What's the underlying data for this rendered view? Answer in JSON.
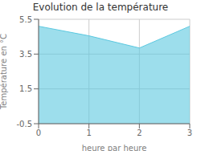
{
  "chart_data": {
    "type": "area",
    "title": "Evolution de la température",
    "xlabel": "heure par heure",
    "ylabel": "Température en °C",
    "x": [
      0,
      1,
      2,
      3
    ],
    "values": [
      5.1,
      4.55,
      3.85,
      5.1
    ],
    "xlim": [
      0,
      3
    ],
    "ylim": [
      -0.5,
      5.5
    ],
    "xticks": [
      0,
      1,
      2,
      3
    ],
    "yticks": [
      -0.5,
      1.5,
      3.5,
      5.5
    ],
    "grid": true,
    "color": "#5bc8e0"
  }
}
